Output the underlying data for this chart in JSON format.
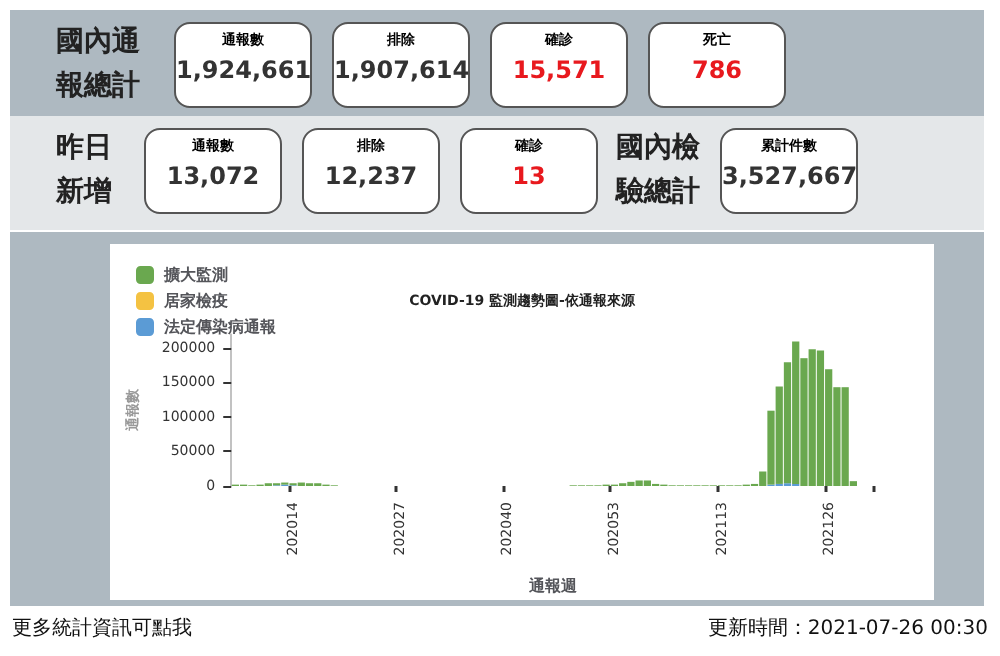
{
  "chart_data": [
    {
      "type": "other",
      "annotations": [
        "國內通報總計",
        "通報數",
        "1,924,661",
        "排除",
        "1,907,614",
        "確診",
        "15,571",
        "死亡",
        "786",
        "昨日新增",
        "通報數",
        "13,072",
        "排除",
        "12,237",
        "確診",
        "13",
        "國內檢驗總計",
        "累計件數",
        "3,527,667"
      ]
    },
    {
      "type": "bar",
      "title": "COVID-19 監測趨勢圖-依通報來源",
      "xlabel": "通報週",
      "ylabel": "通報數",
      "stacked": true,
      "grid": false,
      "legend": "top left",
      "ylim": [
        0,
        220000
      ],
      "yticks": [
        0,
        50000,
        100000,
        150000,
        200000
      ],
      "categories": [
        null,
        null,
        null,
        null,
        null,
        null,
        null,
        "202014",
        null,
        null,
        null,
        null,
        null,
        null,
        null,
        null,
        null,
        null,
        null,
        null,
        "202027",
        null,
        null,
        null,
        null,
        null,
        null,
        null,
        null,
        null,
        null,
        null,
        null,
        "202040",
        null,
        null,
        null,
        null,
        null,
        null,
        null,
        null,
        null,
        null,
        null,
        null,
        "202053",
        null,
        null,
        null,
        null,
        null,
        null,
        null,
        null,
        null,
        null,
        null,
        null,
        "202113",
        null,
        null,
        null,
        null,
        null,
        null,
        null,
        null,
        null,
        null,
        null,
        null,
        "202126",
        null,
        null,
        null,
        null,
        null
      ],
      "series": [
        {
          "name": "法定傳染病通報",
          "color": "#5b9bd5",
          "values": [
            0,
            0,
            0,
            0,
            0,
            1000,
            2000,
            1000,
            0,
            0,
            0,
            0,
            0,
            0,
            0,
            0,
            0,
            0,
            0,
            0,
            0,
            0,
            0,
            0,
            0,
            0,
            0,
            0,
            0,
            0,
            0,
            0,
            0,
            0,
            0,
            0,
            0,
            0,
            0,
            0,
            0,
            0,
            0,
            0,
            0,
            0,
            0,
            0,
            0,
            0,
            0,
            0,
            0,
            0,
            0,
            0,
            0,
            0,
            0,
            0,
            0,
            0,
            0,
            0,
            0,
            2000,
            3000,
            4000,
            3000,
            0,
            0,
            0,
            0,
            0,
            0,
            0,
            0,
            0
          ]
        },
        {
          "name": "居家檢疫",
          "color": "#f4c242",
          "values": [
            0,
            0,
            0,
            0,
            0,
            0,
            0,
            0,
            0,
            0,
            0,
            0,
            0,
            0,
            0,
            0,
            0,
            0,
            0,
            0,
            0,
            0,
            0,
            0,
            0,
            0,
            0,
            0,
            0,
            0,
            0,
            0,
            0,
            0,
            0,
            0,
            0,
            0,
            0,
            0,
            0,
            0,
            0,
            0,
            0,
            0,
            0,
            0,
            0,
            0,
            0,
            0,
            0,
            0,
            0,
            0,
            0,
            0,
            0,
            0,
            0,
            0,
            0,
            0,
            0,
            0,
            0,
            0,
            0,
            0,
            0,
            0,
            0,
            0,
            0,
            0,
            0,
            0
          ]
        },
        {
          "name": "擴大監測",
          "color": "#6aa84f",
          "values": [
            2000,
            2000,
            1000,
            2000,
            4000,
            3000,
            3000,
            3000,
            5000,
            4000,
            4000,
            2000,
            1000,
            0,
            0,
            0,
            0,
            0,
            0,
            0,
            0,
            0,
            0,
            0,
            0,
            0,
            0,
            0,
            0,
            0,
            0,
            0,
            0,
            0,
            0,
            0,
            0,
            0,
            0,
            0,
            0,
            1000,
            1000,
            1000,
            1000,
            2000,
            2000,
            4000,
            6000,
            8000,
            8000,
            3000,
            2000,
            1000,
            1000,
            1000,
            1000,
            1000,
            1000,
            1000,
            1000,
            1000,
            2000,
            3000,
            21000,
            107000,
            141000,
            175000,
            206000,
            185000,
            198000,
            196000,
            169000,
            143000,
            143000,
            7000,
            0,
            0
          ]
        }
      ],
      "annotations": [
        "更多統計資訊可點我",
        "更新時間：2021-07-26 00:30"
      ]
    }
  ]
}
